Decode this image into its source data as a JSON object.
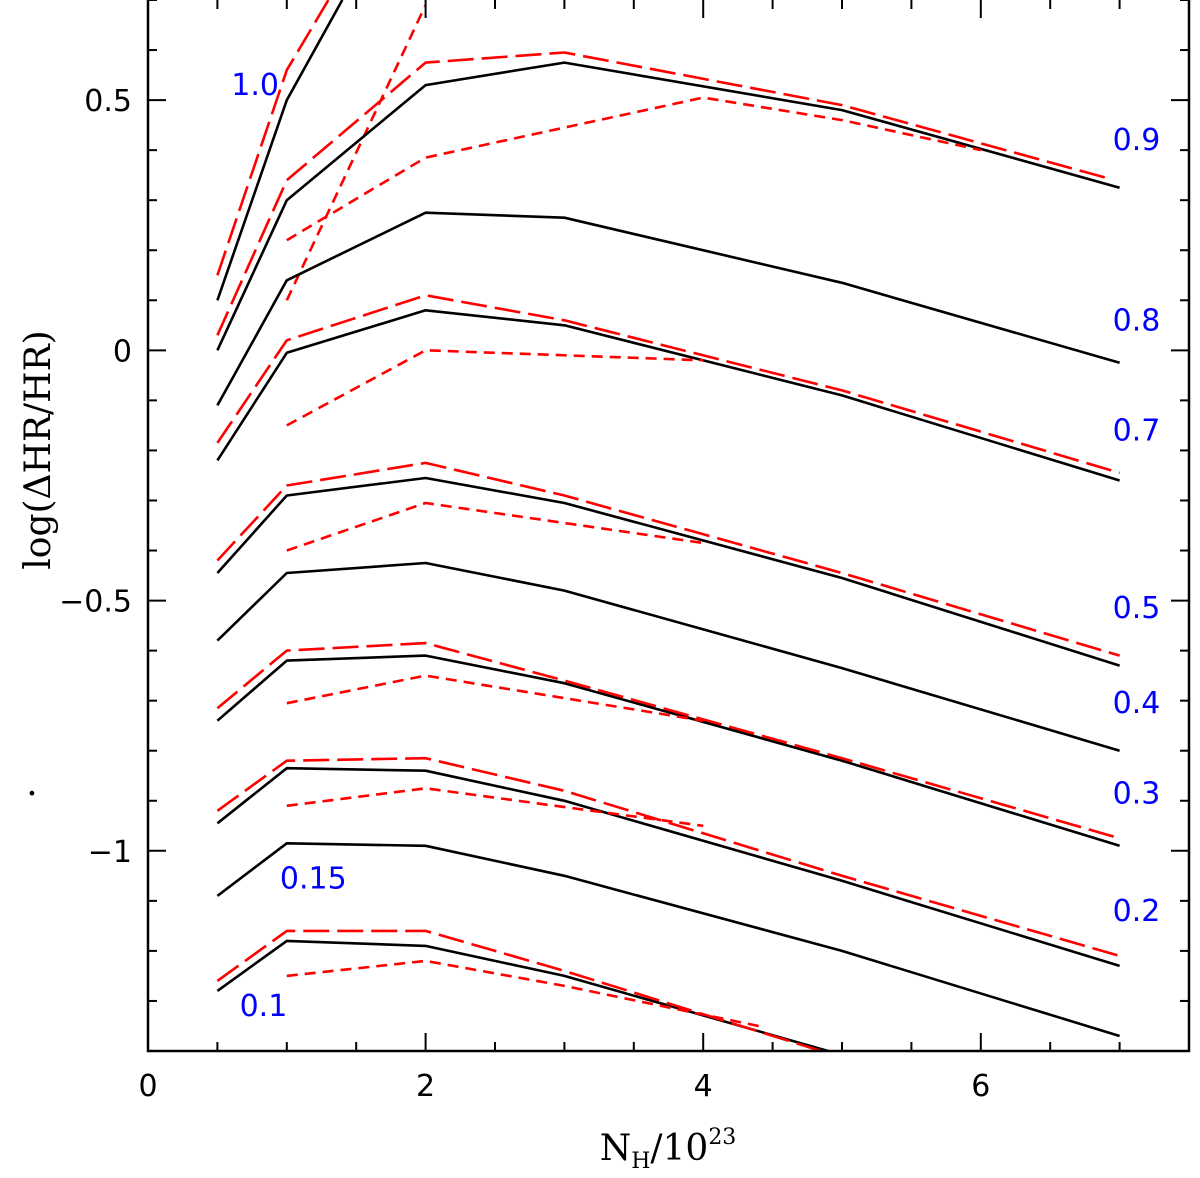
{
  "chart_data": {
    "type": "line",
    "title": "",
    "xlabel": "N_H/10^23",
    "xlabel_main": "N",
    "xlabel_sub": "H",
    "xlabel_after": "/10",
    "xlabel_sup": "23",
    "ylabel": "log(ΔHR/HR)",
    "stray_mark": "·",
    "xlim": [
      0,
      7.5
    ],
    "ylim": [
      -1.4,
      0.7
    ],
    "x_ticks": [
      0,
      2,
      4,
      6
    ],
    "y_ticks": [
      -1,
      -0.5,
      0,
      0.5
    ],
    "x_tick_labels": [
      "0",
      "2",
      "4",
      "6"
    ],
    "y_tick_labels": [
      "−1",
      "−0.5",
      "0",
      "0.5"
    ],
    "x_minor_step": 0.5,
    "y_minor_step": 0.1,
    "colors": {
      "solid": "#000000",
      "dashed": "#ff0000",
      "label": "#0000ff"
    },
    "series": [
      {
        "name": "1.0 solid",
        "style": "solid",
        "x": [
          0.5,
          1,
          1.4
        ],
        "values": [
          0.1,
          0.5,
          0.7
        ]
      },
      {
        "name": "1.0 long-dash",
        "style": "long-dash",
        "x": [
          0.5,
          1,
          1.3
        ],
        "values": [
          0.15,
          0.56,
          0.7
        ]
      },
      {
        "name": "1.0 short-dash",
        "style": "short-dash",
        "x": [
          1,
          2
        ],
        "values": [
          0.1,
          0.69
        ]
      },
      {
        "name": "0.9 solid",
        "style": "solid",
        "x": [
          0.5,
          1,
          2,
          3,
          5,
          7
        ],
        "values": [
          0,
          0.3,
          0.53,
          0.575,
          0.48,
          0.325
        ]
      },
      {
        "name": "0.9 long-dash",
        "style": "long-dash",
        "x": [
          0.5,
          1,
          2,
          3,
          5,
          6.9
        ],
        "values": [
          0.03,
          0.34,
          0.575,
          0.595,
          0.49,
          0.345
        ]
      },
      {
        "name": "0.9 short-dash",
        "style": "short-dash",
        "x": [
          1,
          2,
          4,
          5,
          6
        ],
        "values": [
          0.22,
          0.385,
          0.505,
          0.46,
          0.4
        ]
      },
      {
        "name": "0.8 solid",
        "style": "solid",
        "x": [
          0.5,
          1,
          2,
          3,
          5,
          7
        ],
        "values": [
          -0.11,
          0.14,
          0.275,
          0.265,
          0.135,
          -0.025
        ]
      },
      {
        "name": "0.7 solid",
        "style": "solid",
        "x": [
          0.5,
          1,
          2,
          3,
          5,
          7
        ],
        "values": [
          -0.22,
          -0.005,
          0.08,
          0.05,
          -0.09,
          -0.26
        ]
      },
      {
        "name": "0.7 long-dash",
        "style": "long-dash",
        "x": [
          0.5,
          1,
          2,
          3,
          5,
          7
        ],
        "values": [
          -0.185,
          0.02,
          0.11,
          0.06,
          -0.08,
          -0.245
        ]
      },
      {
        "name": "0.7 short-dash",
        "style": "short-dash",
        "x": [
          1,
          2,
          4
        ],
        "values": [
          -0.15,
          0,
          -0.02
        ]
      },
      {
        "name": "0.5 solid",
        "style": "solid",
        "x": [
          0.5,
          1,
          2,
          3,
          5,
          7
        ],
        "values": [
          -0.445,
          -0.29,
          -0.255,
          -0.305,
          -0.455,
          -0.63
        ]
      },
      {
        "name": "0.5 long-dash",
        "style": "long-dash",
        "x": [
          0.5,
          1,
          2,
          3,
          5,
          7
        ],
        "values": [
          -0.42,
          -0.27,
          -0.225,
          -0.29,
          -0.445,
          -0.61
        ]
      },
      {
        "name": "0.5 short-dash",
        "style": "short-dash",
        "x": [
          1,
          2,
          4
        ],
        "values": [
          -0.4,
          -0.305,
          -0.385
        ]
      },
      {
        "name": "0.4 solid",
        "style": "solid",
        "x": [
          0.5,
          1,
          2,
          3,
          5,
          7
        ],
        "values": [
          -0.58,
          -0.445,
          -0.425,
          -0.48,
          -0.635,
          -0.8
        ]
      },
      {
        "name": "0.3 solid",
        "style": "solid",
        "x": [
          0.5,
          1,
          2,
          3,
          5,
          7
        ],
        "values": [
          -0.74,
          -0.62,
          -0.61,
          -0.665,
          -0.82,
          -0.99
        ]
      },
      {
        "name": "0.3 long-dash",
        "style": "long-dash",
        "x": [
          0.5,
          1,
          2,
          3,
          5,
          7
        ],
        "values": [
          -0.715,
          -0.6,
          -0.585,
          -0.66,
          -0.815,
          -0.975
        ]
      },
      {
        "name": "0.3 short-dash",
        "style": "short-dash",
        "x": [
          1,
          2,
          4
        ],
        "values": [
          -0.705,
          -0.65,
          -0.74
        ]
      },
      {
        "name": "0.2 solid",
        "style": "solid",
        "x": [
          0.5,
          1,
          2,
          3,
          5,
          7
        ],
        "values": [
          -0.945,
          -0.835,
          -0.84,
          -0.9,
          -1.06,
          -1.23
        ]
      },
      {
        "name": "0.2 long-dash",
        "style": "long-dash",
        "x": [
          0.5,
          1,
          2,
          3,
          5,
          7
        ],
        "values": [
          -0.92,
          -0.82,
          -0.815,
          -0.88,
          -1.05,
          -1.21
        ]
      },
      {
        "name": "0.2 short-dash",
        "style": "short-dash",
        "x": [
          1,
          2,
          4
        ],
        "values": [
          -0.91,
          -0.875,
          -0.95
        ]
      },
      {
        "name": "0.15 solid",
        "style": "solid",
        "x": [
          0.5,
          1,
          2,
          3,
          5,
          7
        ],
        "values": [
          -1.09,
          -0.985,
          -0.99,
          -1.05,
          -1.2,
          -1.37
        ]
      },
      {
        "name": "0.1 solid",
        "style": "solid",
        "x": [
          0.5,
          1,
          2,
          3,
          4.9
        ],
        "values": [
          -1.28,
          -1.18,
          -1.19,
          -1.25,
          -1.4
        ]
      },
      {
        "name": "0.1 long-dash",
        "style": "long-dash",
        "x": [
          0.5,
          1,
          2,
          3,
          4.85
        ],
        "values": [
          -1.26,
          -1.16,
          -1.16,
          -1.24,
          -1.4
        ]
      },
      {
        "name": "0.1 short-dash",
        "style": "short-dash",
        "x": [
          1,
          2,
          3,
          4.4
        ],
        "values": [
          -1.25,
          -1.22,
          -1.27,
          -1.35
        ]
      }
    ],
    "annotations": [
      {
        "text": "1.0",
        "x": 0.6,
        "y": 0.51,
        "anchor": "start"
      },
      {
        "text": "0.9",
        "x": 6.95,
        "y": 0.4,
        "anchor": "start"
      },
      {
        "text": "0.8",
        "x": 6.95,
        "y": 0.04,
        "anchor": "start"
      },
      {
        "text": "0.7",
        "x": 6.95,
        "y": -0.18,
        "anchor": "start"
      },
      {
        "text": "0.5",
        "x": 6.95,
        "y": -0.535,
        "anchor": "start"
      },
      {
        "text": "0.4",
        "x": 6.95,
        "y": -0.725,
        "anchor": "start"
      },
      {
        "text": "0.3",
        "x": 6.95,
        "y": -0.905,
        "anchor": "start"
      },
      {
        "text": "0.2",
        "x": 6.95,
        "y": -1.14,
        "anchor": "start"
      },
      {
        "text": "0.15",
        "x": 0.95,
        "y": -1.075,
        "anchor": "start"
      },
      {
        "text": "0.1",
        "x": 0.66,
        "y": -1.33,
        "anchor": "start"
      }
    ]
  }
}
